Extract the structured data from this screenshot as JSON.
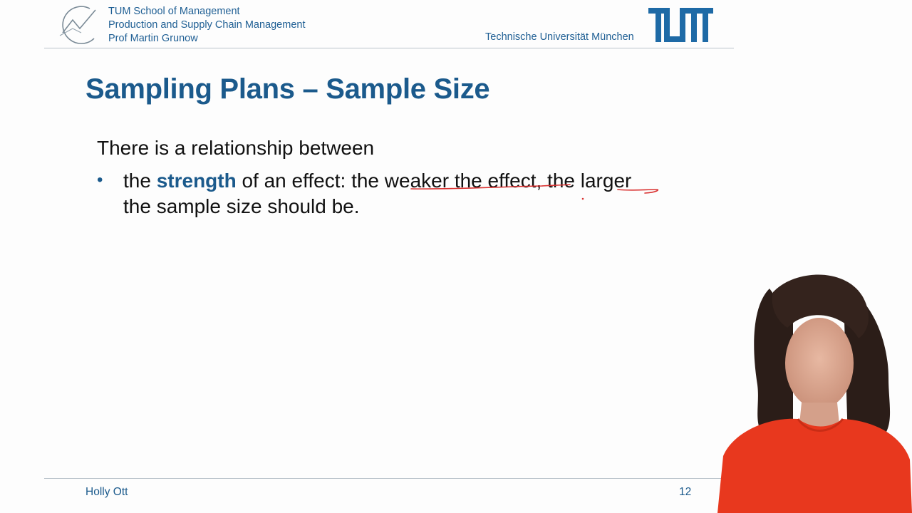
{
  "header": {
    "school": "TUM School of Management",
    "chair": "Production and Supply Chain Management",
    "professor": "Prof Martin Grunow",
    "university": "Technische Universität München",
    "logo_icon": "tum-logo-icon",
    "chair_icon": "chart-curve-logo-icon"
  },
  "slide": {
    "title": "Sampling Plans – Sample Size",
    "intro": "There is a relationship between",
    "bullets": [
      {
        "marker": "•",
        "prefix": "the ",
        "keyword": "strength",
        "line1": " of an effect: the weaker the effect, the larger",
        "line2": "the sample size should be."
      }
    ]
  },
  "footer": {
    "author": "Holly Ott",
    "page": "12"
  },
  "presenter": {
    "icon": "presenter-video-icon"
  },
  "colors": {
    "brand_blue": "#1b5a8c",
    "ink_red": "#d9302f",
    "presenter_top": "#e8381e"
  }
}
